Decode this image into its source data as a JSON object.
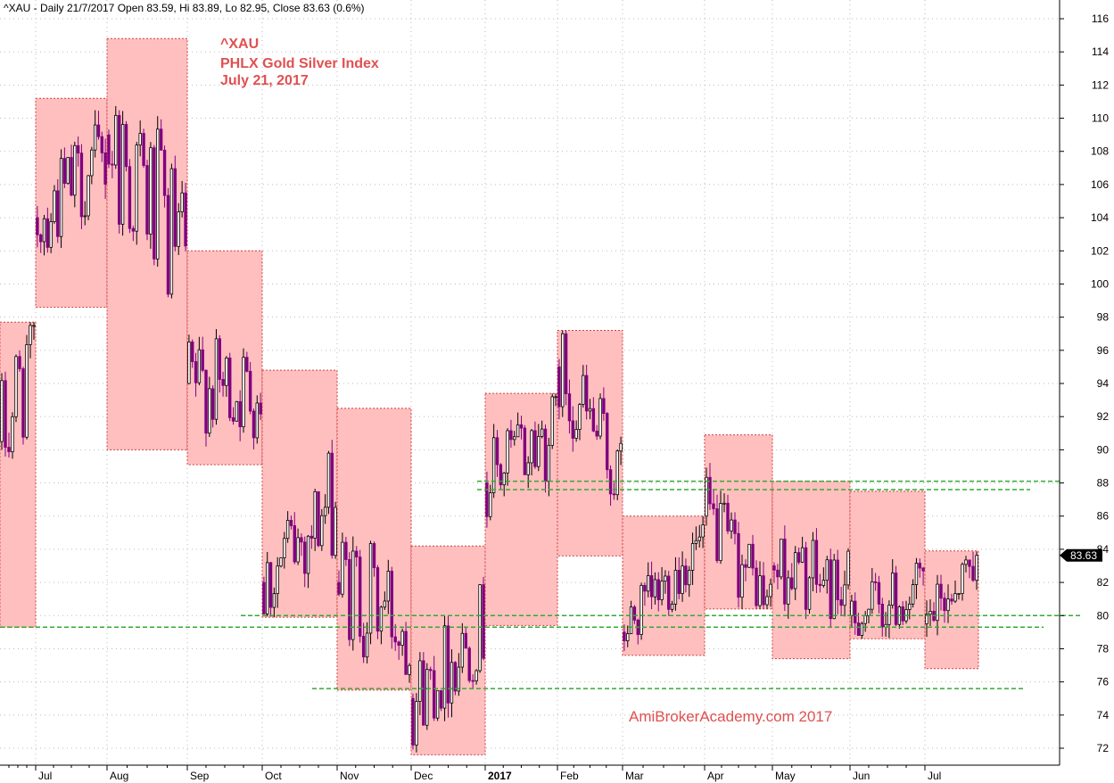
{
  "header": {
    "text": "^XAU - Daily 21/7/2017 Open 83.59, Hi 83.89, Lo 82.95, Close 83.63 (0.6%)"
  },
  "annotation": {
    "lines": [
      "^XAU",
      "PHLX Gold Silver Index",
      "July 21, 2017"
    ],
    "color": "#e05050"
  },
  "watermark": {
    "text": "AmiBrokerAcademy.com  2017",
    "color": "#e05050"
  },
  "last_price": {
    "label": "83.63",
    "value": 83.63
  },
  "colors": {
    "box_fill": "#ffb8b8",
    "box_border": "#d04040",
    "candle_up": "#000000",
    "candle_down": "#800080",
    "support_line": "#33aa33",
    "grid": "#bbbbbb"
  },
  "chart_data": {
    "type": "candlestick",
    "ylim": [
      71,
      117
    ],
    "y_ticks": [
      72,
      74,
      76,
      78,
      80,
      82,
      84,
      86,
      88,
      90,
      92,
      94,
      96,
      98,
      100,
      102,
      104,
      106,
      108,
      110,
      112,
      114,
      116
    ],
    "x_ticks": [
      {
        "label": "Jul",
        "bold": false
      },
      {
        "label": "Aug",
        "bold": false
      },
      {
        "label": "Sep",
        "bold": false
      },
      {
        "label": "Oct",
        "bold": false
      },
      {
        "label": "Nov",
        "bold": false
      },
      {
        "label": "Dec",
        "bold": false
      },
      {
        "label": "2017",
        "bold": true
      },
      {
        "label": "Feb",
        "bold": false
      },
      {
        "label": "Mar",
        "bold": false
      },
      {
        "label": "Apr",
        "bold": false
      },
      {
        "label": "May",
        "bold": false
      },
      {
        "label": "Jun",
        "bold": false
      },
      {
        "label": "Jul",
        "bold": false
      }
    ],
    "monthly_ranges": [
      {
        "month": "Jun 2016",
        "high": 97.7,
        "low": 79.3
      },
      {
        "month": "Jul 2016",
        "high": 111.2,
        "low": 98.6
      },
      {
        "month": "Aug 2016",
        "high": 114.8,
        "low": 90.0
      },
      {
        "month": "Sep 2016",
        "high": 102.0,
        "low": 89.1
      },
      {
        "month": "Oct 2016",
        "high": 94.8,
        "low": 79.9
      },
      {
        "month": "Nov 2016",
        "high": 92.5,
        "low": 75.5
      },
      {
        "month": "Dec 2016",
        "high": 84.2,
        "low": 71.6
      },
      {
        "month": "Jan 2017",
        "high": 93.4,
        "low": 79.4
      },
      {
        "month": "Feb 2017",
        "high": 97.2,
        "low": 83.6
      },
      {
        "month": "Mar 2017",
        "high": 86.0,
        "low": 77.6
      },
      {
        "month": "Apr 2017",
        "high": 90.9,
        "low": 80.4
      },
      {
        "month": "May 2017",
        "high": 88.1,
        "low": 77.4
      },
      {
        "month": "Jun 2017",
        "high": 87.5,
        "low": 78.6
      },
      {
        "month": "Jul 2017",
        "high": 83.9,
        "low": 76.8
      }
    ],
    "support_resistance_lines": [
      88.1,
      87.6,
      80.0,
      79.3,
      75.6
    ],
    "last_close": 83.63
  }
}
